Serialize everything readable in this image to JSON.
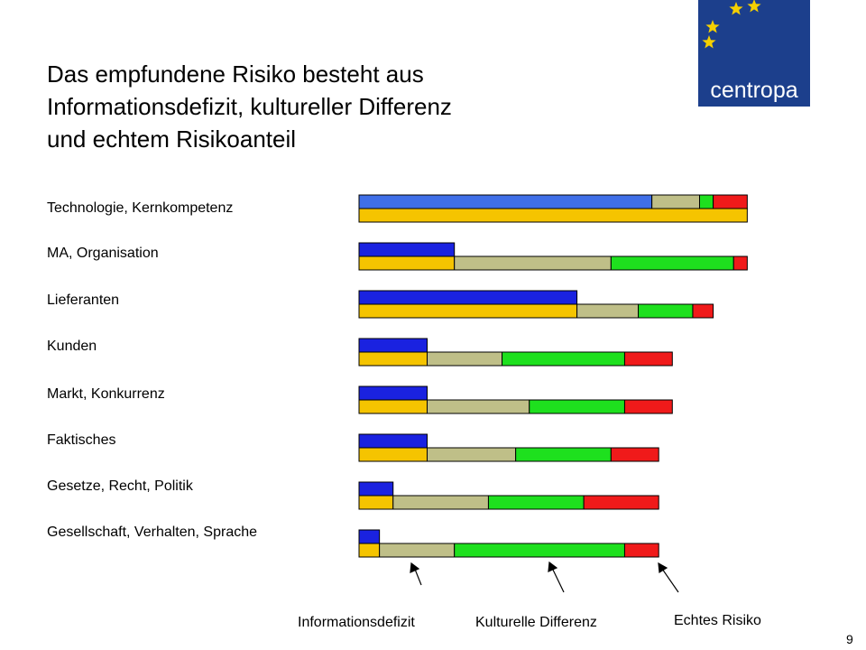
{
  "title_lines": [
    "Das empfundene Risiko besteht aus",
    "Informationsdefizit, kultureller Differenz",
    "und echtem Risikoanteil"
  ],
  "logo": {
    "text": "centropa",
    "bg_color": "#1c3f8c",
    "star_color": "#f5d000"
  },
  "page_number": "9",
  "chart_data": {
    "type": "bar",
    "orientation": "horizontal",
    "stacked": true,
    "categories": [
      "Technologie, Kernkompetenz",
      "MA, Organisation",
      "Lieferanten",
      "Kunden",
      "Markt, Konkurrenz",
      "Faktisches",
      "Gesetze, Recht, Politik",
      "Gesellschaft, Verhalten, Sprache"
    ],
    "total_bar": {
      "color": "#1a22e0",
      "first_row_color": "#3f6fe8",
      "values": [
        43,
        14,
        32,
        10,
        10,
        10,
        5,
        3
      ]
    },
    "series": [
      {
        "name": "Informationsdefizit",
        "color": "#f5c400",
        "values": [
          43,
          14,
          32,
          10,
          10,
          10,
          5,
          3
        ]
      },
      {
        "name": "Kulturelle Differenz",
        "color": "#bfbf88",
        "values": [
          7,
          23,
          9,
          11,
          15,
          13,
          14,
          11
        ]
      },
      {
        "name": "",
        "color": "#1ee01e",
        "values": [
          2,
          18,
          8,
          18,
          14,
          14,
          14,
          25
        ]
      },
      {
        "name": "Echtes Risiko",
        "color": "#f01a1a",
        "values": [
          5,
          2,
          3,
          7,
          7,
          7,
          11,
          5
        ]
      }
    ],
    "top_row_override": {
      "note_segments": [
        {
          "color": "#3f6fe8",
          "value": 43
        },
        {
          "color": "#bfbf88",
          "value": 7
        },
        {
          "color": "#1ee01e",
          "value": 2
        },
        {
          "color": "#f01a1a",
          "value": 5
        }
      ],
      "bottom_color": "#f5c400",
      "bottom_value": 57
    },
    "legend_labels": [
      "Informationsdefizit",
      "Kulturelle Differenz",
      "Echtes Risiko"
    ],
    "grid": false
  }
}
